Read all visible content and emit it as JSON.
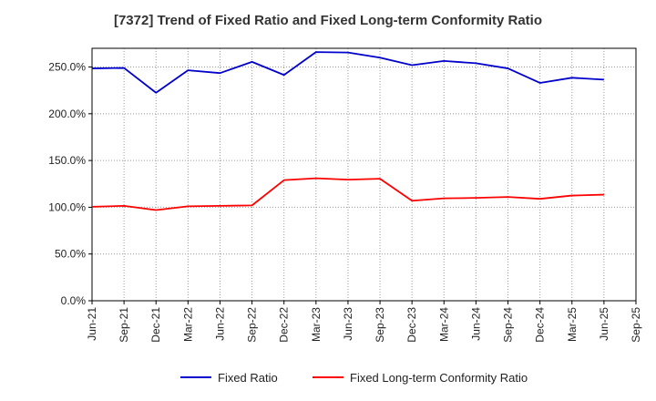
{
  "chart_data": {
    "type": "line",
    "title": "[7372]  Trend of Fixed Ratio and Fixed Long-term Conformity Ratio",
    "xlabel": "",
    "ylabel": "",
    "x_ticks": [
      "Jun-21",
      "Sep-21",
      "Dec-21",
      "Mar-22",
      "Jun-22",
      "Sep-22",
      "Dec-22",
      "Mar-23",
      "Jun-23",
      "Sep-23",
      "Dec-23",
      "Mar-24",
      "Jun-24",
      "Sep-24",
      "Dec-24",
      "Mar-25",
      "Jun-25",
      "Sep-25"
    ],
    "y_ticks": [
      "0.0%",
      "50.0%",
      "100.0%",
      "150.0%",
      "200.0%",
      "250.0%"
    ],
    "ylim": [
      0,
      270
    ],
    "grid": true,
    "legend_position": "bottom",
    "x": [
      "Jun-21",
      "Sep-21",
      "Dec-21",
      "Mar-22",
      "Jun-22",
      "Sep-22",
      "Dec-22",
      "Mar-23",
      "Jun-23",
      "Sep-23",
      "Dec-23",
      "Mar-24",
      "Jun-24",
      "Sep-24",
      "Dec-24",
      "Mar-25",
      "Jun-25"
    ],
    "series": [
      {
        "name": "Fixed Ratio",
        "color": "#0000cc",
        "values": [
          248.5,
          249.0,
          222.5,
          246.5,
          243.5,
          255.5,
          241.5,
          266.0,
          265.5,
          260.0,
          252.0,
          256.5,
          254.0,
          248.5,
          233.0,
          238.5,
          236.5
        ]
      },
      {
        "name": "Fixed Long-term Conformity Ratio",
        "color": "#ff0000",
        "values": [
          100.5,
          101.5,
          97.0,
          101.0,
          101.5,
          102.0,
          129.0,
          131.0,
          129.5,
          130.5,
          107.0,
          109.5,
          110.0,
          111.0,
          109.0,
          112.5,
          113.5
        ]
      }
    ]
  }
}
